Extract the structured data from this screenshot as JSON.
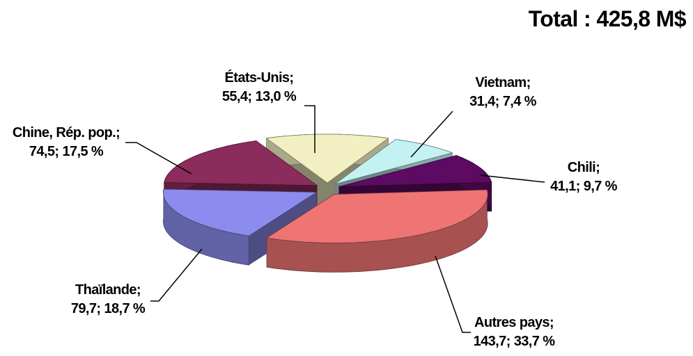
{
  "chart_data": {
    "type": "pie3d",
    "title": "Total : 425,8 M$",
    "categories": [
      "États-Unis;",
      "Vietnam;",
      "Chili;",
      "Autres pays;",
      "Thaïlande;",
      "Chine, Rép. pop.;"
    ],
    "values": [
      55.4,
      31.4,
      41.1,
      143.7,
      79.7,
      74.5
    ],
    "value_labels": [
      "55,4;",
      "31,4;",
      "41,1;",
      "143,7;",
      "79,7;",
      "74,5;"
    ],
    "percents": [
      13.0,
      7.4,
      9.7,
      33.7,
      18.7,
      17.5
    ],
    "percent_labels": [
      "13,0 %",
      "7,4 %",
      "9,7 %",
      "33,7 %",
      "18,7 %",
      "17,5 %"
    ],
    "colors": [
      "#f2f0c2",
      "#c4f2f2",
      "#5c0a62",
      "#ef7474",
      "#8c8cee",
      "#8c2c5c"
    ]
  }
}
